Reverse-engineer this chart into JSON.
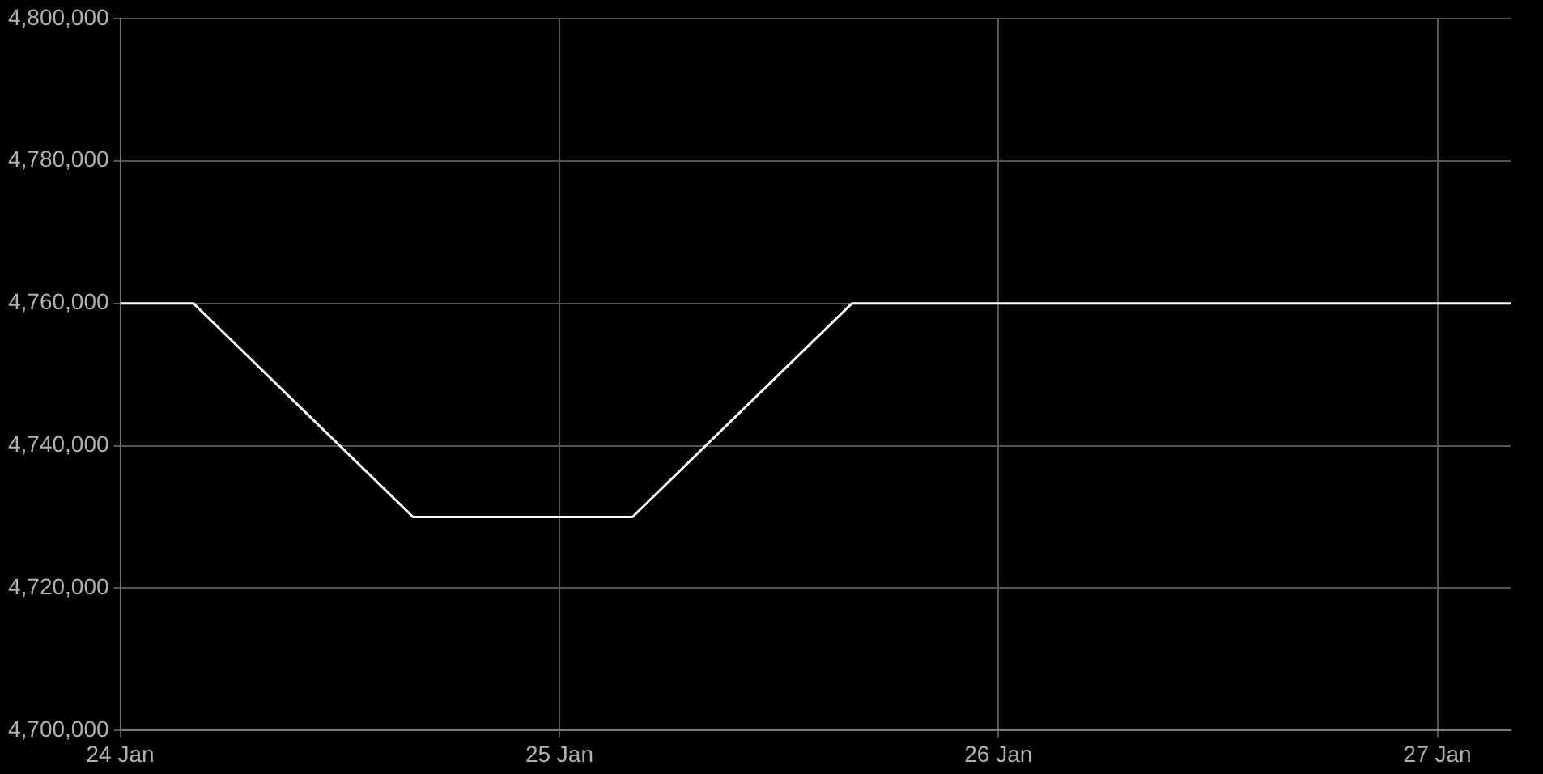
{
  "chart_data": {
    "type": "line",
    "x": [
      "--01-24T00:00",
      "--01-24T04:00",
      "--01-24T16:00",
      "--01-25T04:00",
      "--01-25T16:00",
      "--01-27T04:00"
    ],
    "series": [
      {
        "color": "#ffffff",
        "values": [
          4760000,
          4760000,
          4730000,
          4730000,
          4760000,
          4760000
        ]
      }
    ],
    "xlim": [
      "--01-24T00:00",
      "--01-27T04:00"
    ],
    "xticks": [
      {
        "value": "--01-24",
        "label": "24 Jan"
      },
      {
        "value": "--01-25",
        "label": "25 Jan"
      },
      {
        "value": "--01-26",
        "label": "26 Jan"
      },
      {
        "value": "--01-27",
        "label": "27 Jan"
      }
    ],
    "ylim": [
      4700000,
      4800000
    ],
    "yticks": [
      {
        "value": 4700000,
        "label": "4,700,000"
      },
      {
        "value": 4720000,
        "label": "4,720,000"
      },
      {
        "value": 4740000,
        "label": "4,740,000"
      },
      {
        "value": 4760000,
        "label": "4,760,000"
      },
      {
        "value": 4780000,
        "label": "4,780,000"
      },
      {
        "value": 4800000,
        "label": "4,800,000"
      }
    ],
    "grid": true,
    "legend": false,
    "marker": "none",
    "line_style": "solid"
  }
}
